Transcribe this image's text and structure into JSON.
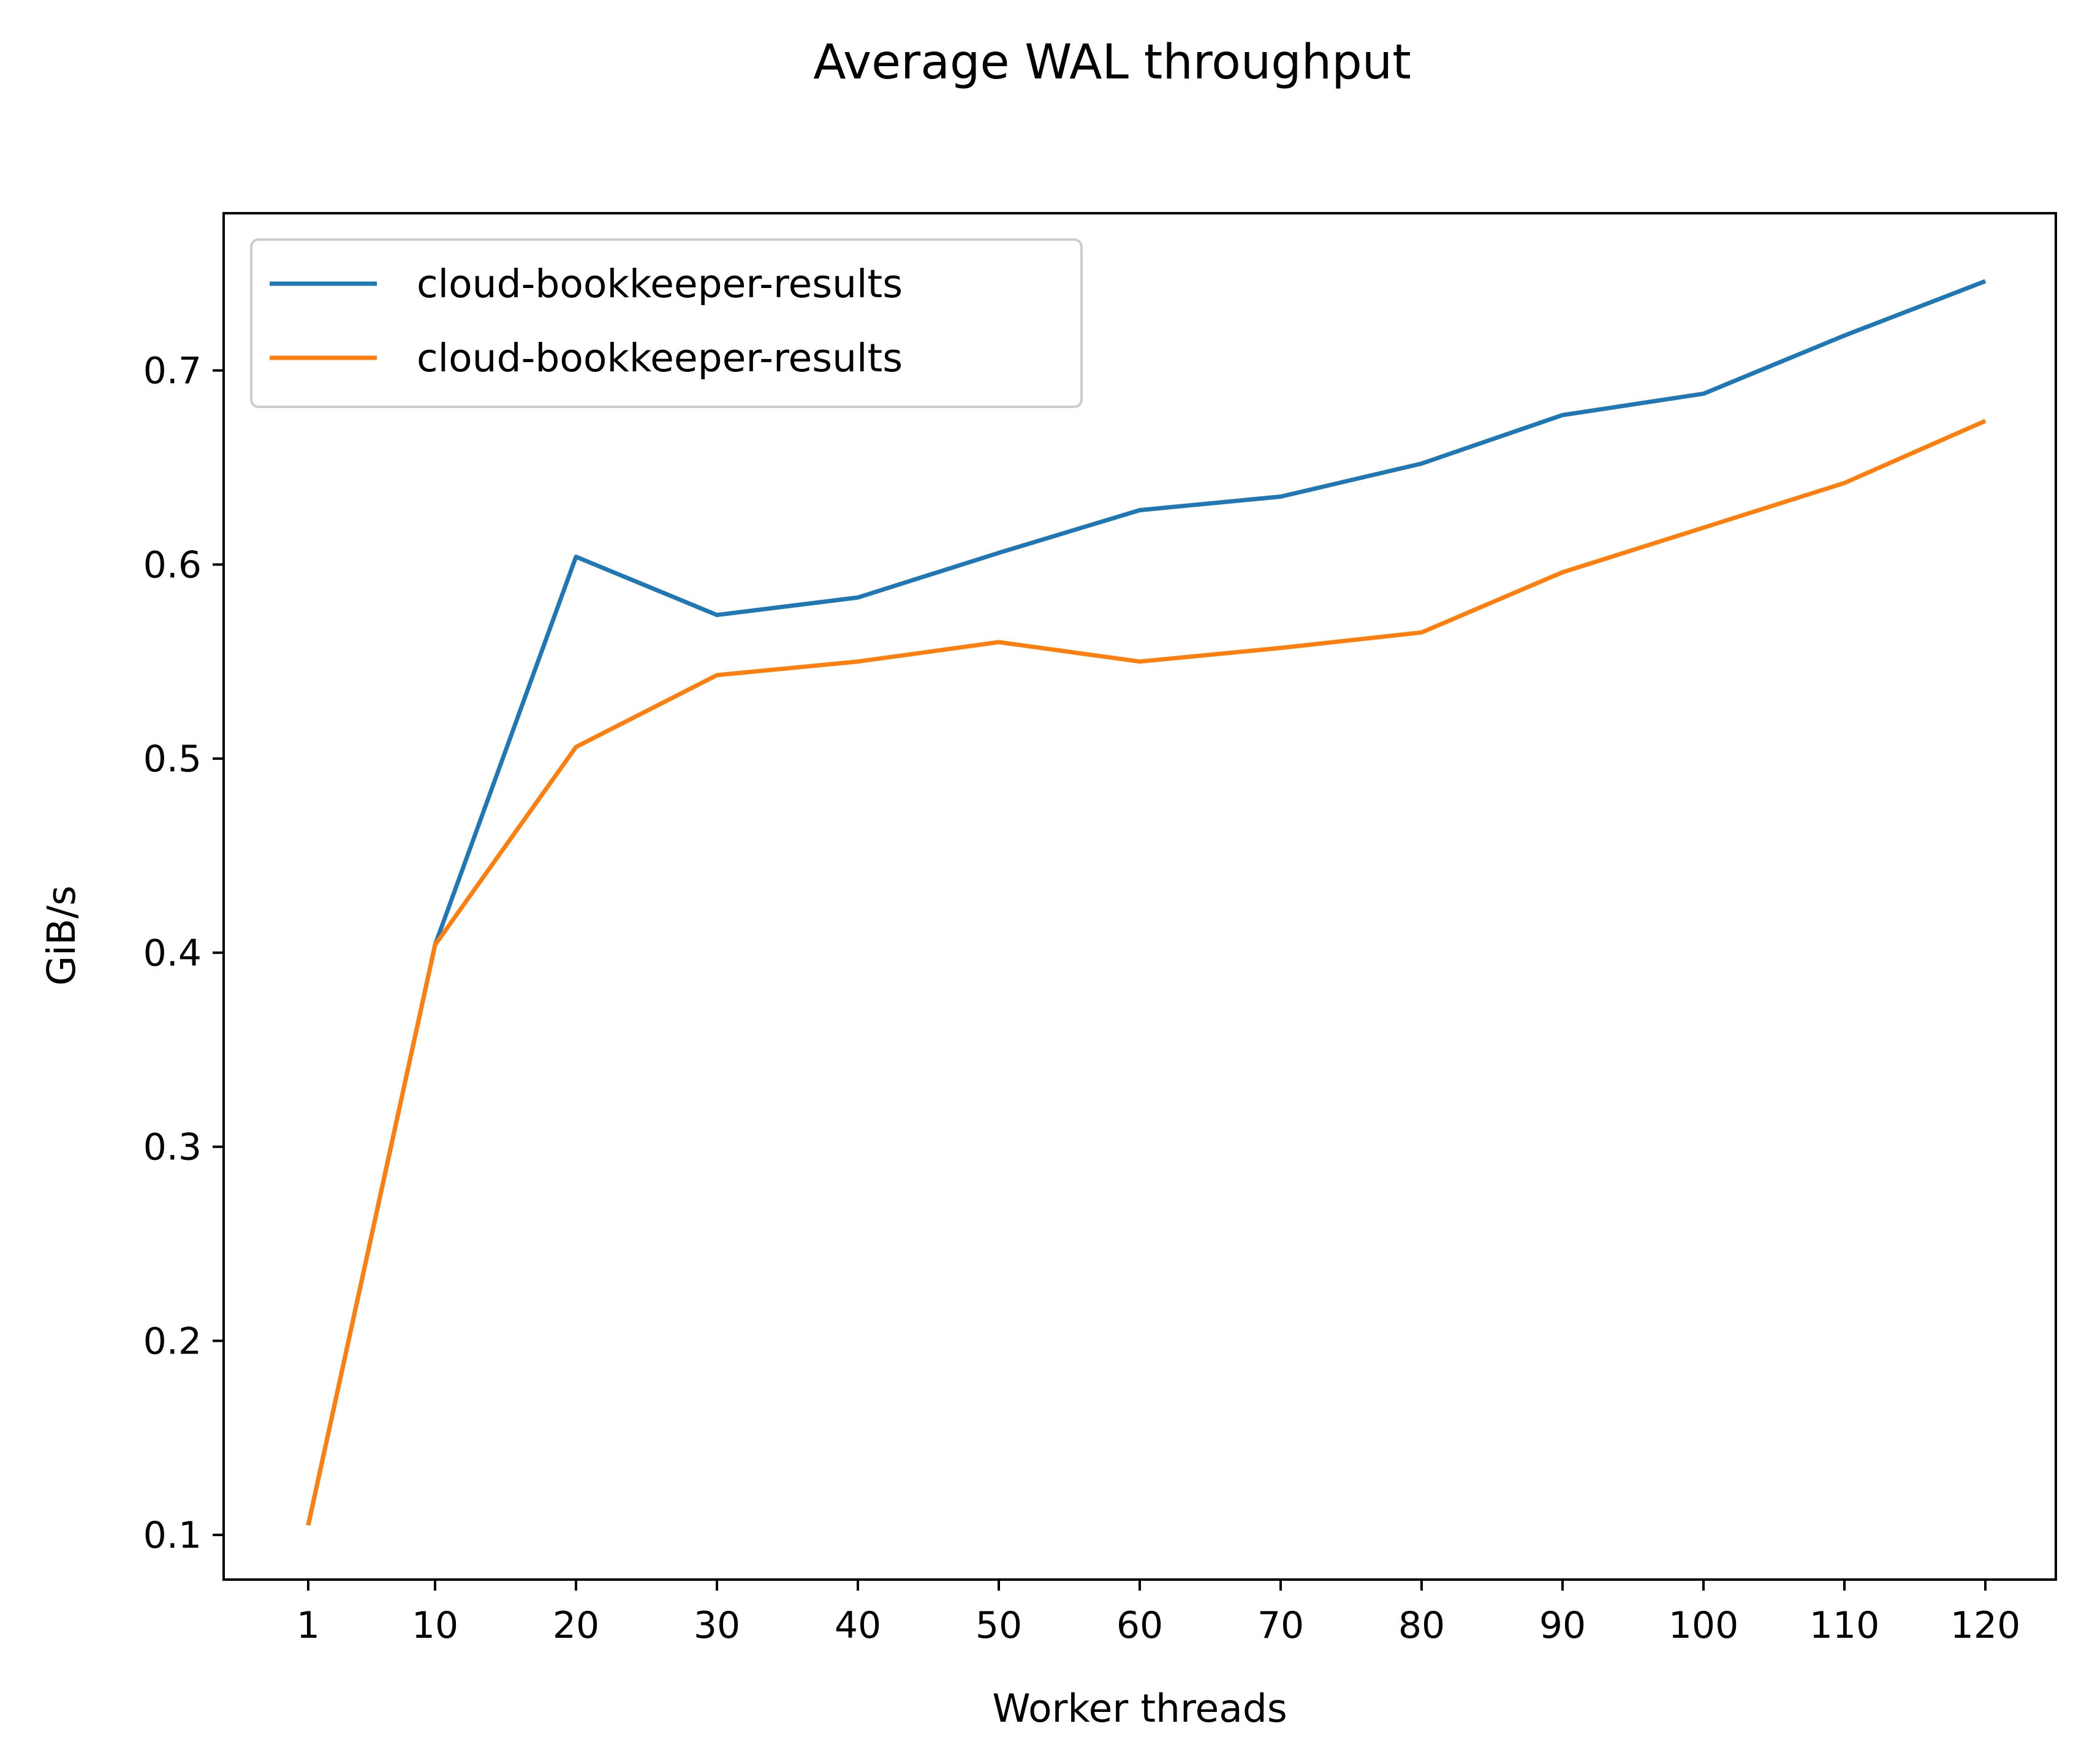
{
  "chart_data": {
    "type": "line",
    "title": "Average WAL throughput",
    "xlabel": "Worker threads",
    "ylabel": "GiB/s",
    "x": [
      1,
      10,
      20,
      30,
      40,
      50,
      60,
      70,
      80,
      90,
      100,
      110,
      120
    ],
    "x_tick_labels": [
      "1",
      "10",
      "20",
      "30",
      "40",
      "50",
      "60",
      "70",
      "80",
      "90",
      "100",
      "110",
      "120"
    ],
    "y_ticks": [
      0.1,
      0.2,
      0.3,
      0.4,
      0.5,
      0.6,
      0.7
    ],
    "y_tick_labels": [
      "0.1",
      "0.2",
      "0.3",
      "0.4",
      "0.5",
      "0.6",
      "0.7"
    ],
    "xlim": [
      -5,
      125
    ],
    "ylim": [
      0.077,
      0.781
    ],
    "grid": false,
    "legend_position": "upper-left",
    "series": [
      {
        "name": "cloud-bookkeeper-results",
        "color": "#1f77b4",
        "values": [
          0.105,
          0.404,
          0.604,
          0.574,
          0.583,
          0.606,
          0.628,
          0.635,
          0.652,
          0.677,
          0.688,
          0.718,
          0.746
        ]
      },
      {
        "name": "cloud-bookkeeper-results",
        "color": "#ff7f0e",
        "values": [
          0.105,
          0.404,
          0.506,
          0.543,
          0.55,
          0.56,
          0.55,
          0.557,
          0.565,
          0.596,
          0.619,
          0.642,
          0.674
        ]
      }
    ]
  }
}
